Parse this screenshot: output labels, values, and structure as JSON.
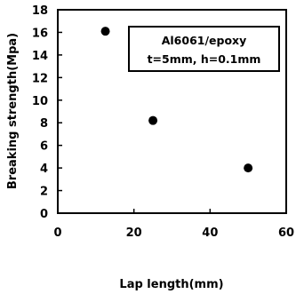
{
  "chart_data": {
    "type": "scatter",
    "title": "",
    "xlabel": "Lap length(mm)",
    "ylabel": "Breaking strength(Mpa)",
    "xlim": [
      0,
      60
    ],
    "ylim": [
      0,
      18
    ],
    "xticks": [
      0,
      20,
      40,
      60
    ],
    "yticks": [
      0,
      2,
      4,
      6,
      8,
      10,
      12,
      14,
      16,
      18
    ],
    "grid": false,
    "series": [
      {
        "x": [
          12.5,
          25,
          50
        ],
        "y": [
          16.1,
          8.2,
          4.0
        ]
      }
    ],
    "annotation": {
      "lines": [
        "Al6061/epoxy",
        "t=5mm, h=0.1mm"
      ],
      "placement": "top-right"
    }
  }
}
